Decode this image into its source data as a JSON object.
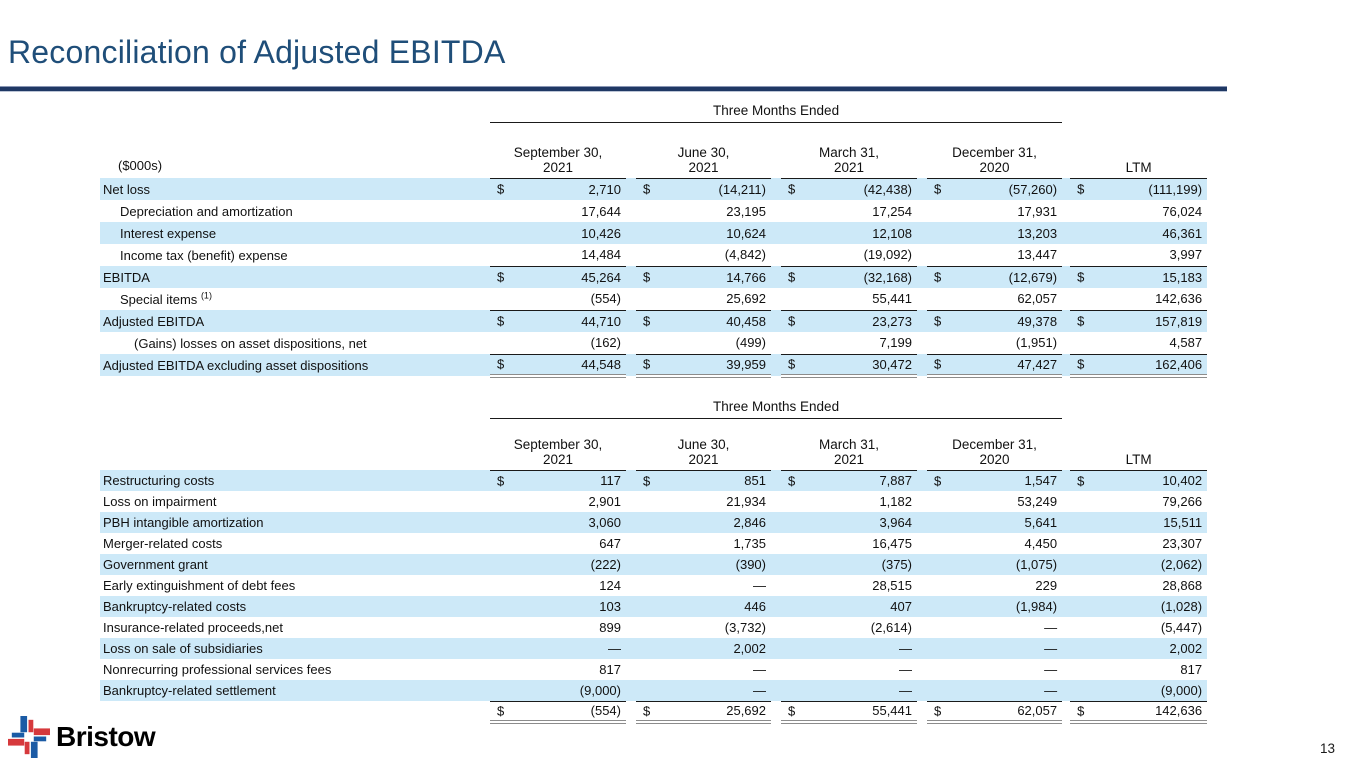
{
  "slide": {
    "title": "Reconciliation of Adjusted EBITDA",
    "page_number": "13",
    "logo_text": "Bristow"
  },
  "currency": "$",
  "colors": {
    "title_blue": "#1f4e79",
    "divider_navy": "#1f3864",
    "row_highlight": "#cde9f8",
    "border_dark": "#1a1a1a",
    "border_gray": "#8c8c8c",
    "logo_blue": "#1b5ba5",
    "logo_red": "#d6393c"
  },
  "columns": [
    {
      "l1": "September 30,",
      "l2": "2021"
    },
    {
      "l1": "June 30,",
      "l2": "2021"
    },
    {
      "l1": "March 31,",
      "l2": "2021"
    },
    {
      "l1": "December 31,",
      "l2": "2020"
    },
    {
      "l1": "LTM",
      "l2": ""
    }
  ],
  "table1": {
    "group_header": "Three Months Ended",
    "unit_label": "($000s)",
    "rows": [
      {
        "label": "Net loss",
        "indent": 0,
        "dollar": true,
        "hl": true,
        "border": "",
        "values": [
          "2,710",
          "(14,211)",
          "(42,438)",
          "(57,260)",
          "(111,199)"
        ]
      },
      {
        "label": "Depreciation and amortization",
        "indent": 1,
        "dollar": false,
        "hl": false,
        "border": "",
        "values": [
          "17,644",
          "23,195",
          "17,254",
          "17,931",
          "76,024"
        ]
      },
      {
        "label": "Interest expense",
        "indent": 1,
        "dollar": false,
        "hl": true,
        "border": "",
        "values": [
          "10,426",
          "10,624",
          "12,108",
          "13,203",
          "46,361"
        ]
      },
      {
        "label": "Income tax (benefit) expense",
        "indent": 1,
        "dollar": false,
        "hl": false,
        "border": "dark",
        "values": [
          "14,484",
          "(4,842)",
          "(19,092)",
          "13,447",
          "3,997"
        ]
      },
      {
        "label": "EBITDA",
        "indent": 0,
        "dollar": true,
        "hl": true,
        "border": "",
        "values": [
          "45,264",
          "14,766",
          "(32,168)",
          "(12,679)",
          "15,183"
        ]
      },
      {
        "label": "Special items",
        "sup": "(1)",
        "indent": 1,
        "dollar": false,
        "hl": false,
        "border": "dark",
        "values": [
          "(554)",
          "25,692",
          "55,441",
          "62,057",
          "142,636"
        ]
      },
      {
        "label": "Adjusted EBITDA",
        "indent": 0,
        "dollar": true,
        "hl": true,
        "border": "",
        "values": [
          "44,710",
          "40,458",
          "23,273",
          "49,378",
          "157,819"
        ]
      },
      {
        "label": "(Gains) losses on asset dispositions, net",
        "indent": 2,
        "dollar": false,
        "hl": false,
        "border": "dark",
        "values": [
          "(162)",
          "(499)",
          "7,199",
          "(1,951)",
          "4,587"
        ]
      },
      {
        "label": "Adjusted EBITDA excluding asset dispositions",
        "indent": 0,
        "dollar": true,
        "hl": true,
        "border": "double",
        "values": [
          "44,548",
          "39,959",
          "30,472",
          "47,427",
          "162,406"
        ]
      }
    ]
  },
  "table2": {
    "group_header": "Three Months Ended",
    "unit_label": "",
    "rows": [
      {
        "label": "Restructuring costs",
        "indent": 0,
        "dollar": true,
        "hl": true,
        "border": "",
        "values": [
          "117",
          "851",
          "7,887",
          "1,547",
          "10,402"
        ]
      },
      {
        "label": "Loss on impairment",
        "indent": 0,
        "dollar": false,
        "hl": false,
        "border": "",
        "values": [
          "2,901",
          "21,934",
          "1,182",
          "53,249",
          "79,266"
        ]
      },
      {
        "label": "PBH intangible amortization",
        "indent": 0,
        "dollar": false,
        "hl": true,
        "border": "",
        "values": [
          "3,060",
          "2,846",
          "3,964",
          "5,641",
          "15,511"
        ]
      },
      {
        "label": "Merger-related costs",
        "indent": 0,
        "dollar": false,
        "hl": false,
        "border": "",
        "values": [
          "647",
          "1,735",
          "16,475",
          "4,450",
          "23,307"
        ]
      },
      {
        "label": "Government grant",
        "indent": 0,
        "dollar": false,
        "hl": true,
        "border": "",
        "values": [
          "(222)",
          "(390)",
          "(375)",
          "(1,075)",
          "(2,062)"
        ]
      },
      {
        "label": "Early extinguishment of debt fees",
        "indent": 0,
        "dollar": false,
        "hl": false,
        "border": "",
        "values": [
          "124",
          "—",
          "28,515",
          "229",
          "28,868"
        ]
      },
      {
        "label": "Bankruptcy-related costs",
        "indent": 0,
        "dollar": false,
        "hl": true,
        "border": "",
        "values": [
          "103",
          "446",
          "407",
          "(1,984)",
          "(1,028)"
        ]
      },
      {
        "label": "Insurance-related proceeds,net",
        "indent": 0,
        "dollar": false,
        "hl": false,
        "border": "",
        "values": [
          "899",
          "(3,732)",
          "(2,614)",
          "—",
          "(5,447)"
        ]
      },
      {
        "label": "Loss on sale of subsidiaries",
        "indent": 0,
        "dollar": false,
        "hl": true,
        "border": "",
        "values": [
          "—",
          "2,002",
          "—",
          "—",
          "2,002"
        ]
      },
      {
        "label": "Nonrecurring professional services fees",
        "indent": 0,
        "dollar": false,
        "hl": false,
        "border": "",
        "values": [
          "817",
          "—",
          "—",
          "—",
          "817"
        ]
      },
      {
        "label": "Bankruptcy-related settlement",
        "indent": 0,
        "dollar": false,
        "hl": true,
        "border": "dark",
        "values": [
          "(9,000)",
          "—",
          "—",
          "—",
          "(9,000)"
        ]
      },
      {
        "label": "",
        "indent": 0,
        "dollar": true,
        "hl": false,
        "border": "double",
        "values": [
          "(554)",
          "25,692",
          "55,441",
          "62,057",
          "142,636"
        ]
      }
    ]
  }
}
